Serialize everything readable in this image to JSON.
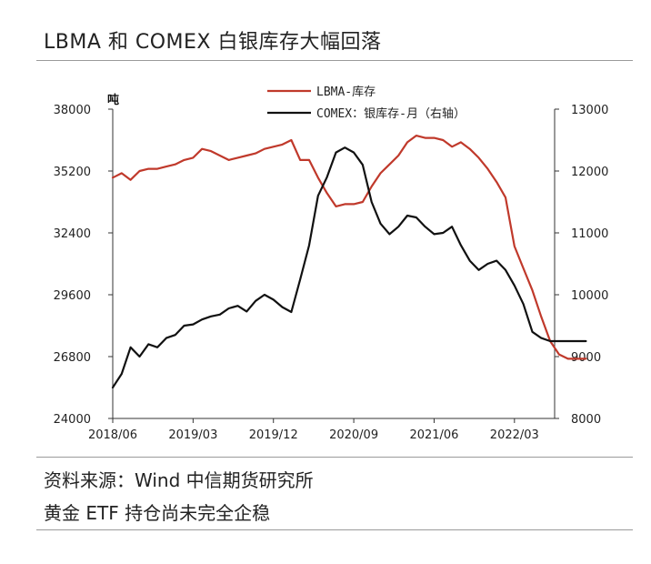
{
  "header": {
    "title": "LBMA 和 COMEX 白银库存大幅回落"
  },
  "footer": {
    "source": "资料来源：Wind 中信期货研究所",
    "note": "黄金 ETF 持仓尚未完全企稳"
  },
  "colors": {
    "lbma": "#c0392b",
    "comex": "#111111"
  },
  "chart_data": {
    "type": "line",
    "title": "",
    "left_unit_label": "吨",
    "x_ticks": [
      "2018/06",
      "2019/03",
      "2019/12",
      "2020/09",
      "2021/06",
      "2022/03"
    ],
    "y_left": {
      "lim": [
        24000,
        38000
      ],
      "ticks": [
        "24000",
        "26800",
        "29600",
        "32400",
        "35200",
        "38000"
      ]
    },
    "y_right": {
      "lim": [
        8000,
        13000
      ],
      "ticks": [
        "8000",
        "9000",
        "10000",
        "11000",
        "12000",
        "13000"
      ]
    },
    "legend_placement": "top-center",
    "series": [
      {
        "name": "LBMA-库存",
        "axis": "left",
        "x": [
          "2018/06",
          "2018/07",
          "2018/08",
          "2018/09",
          "2018/10",
          "2018/11",
          "2018/12",
          "2019/01",
          "2019/02",
          "2019/03",
          "2019/04",
          "2019/05",
          "2019/06",
          "2019/07",
          "2019/08",
          "2019/09",
          "2019/10",
          "2019/11",
          "2019/12",
          "2020/01",
          "2020/02",
          "2020/03",
          "2020/04",
          "2020/05",
          "2020/06",
          "2020/07",
          "2020/08",
          "2020/09",
          "2020/10",
          "2020/11",
          "2020/12",
          "2021/01",
          "2021/02",
          "2021/03",
          "2021/04",
          "2021/05",
          "2021/06",
          "2021/07",
          "2021/08",
          "2021/09",
          "2021/10",
          "2021/11",
          "2021/12",
          "2022/01",
          "2022/02",
          "2022/03",
          "2022/04",
          "2022/05",
          "2022/06",
          "2022/07",
          "2022/08",
          "2022/09",
          "2022/10",
          "2022/11"
        ],
        "values": [
          34900,
          35100,
          34800,
          35200,
          35300,
          35300,
          35400,
          35500,
          35700,
          35800,
          36200,
          36100,
          35900,
          35700,
          35800,
          35900,
          36000,
          36200,
          36300,
          36400,
          36600,
          35700,
          35700,
          34900,
          34200,
          33600,
          33700,
          33700,
          33800,
          34500,
          35100,
          35500,
          35900,
          36500,
          36800,
          36700,
          36700,
          36600,
          36300,
          36500,
          36200,
          35800,
          35300,
          34700,
          34000,
          31800,
          30800,
          29800,
          28600,
          27500,
          26900,
          26700,
          26700,
          26700
        ]
      },
      {
        "name": "COMEX：银库存-月（右轴）",
        "axis": "right",
        "x": [
          "2018/06",
          "2018/07",
          "2018/08",
          "2018/09",
          "2018/10",
          "2018/11",
          "2018/12",
          "2019/01",
          "2019/02",
          "2019/03",
          "2019/04",
          "2019/05",
          "2019/06",
          "2019/07",
          "2019/08",
          "2019/09",
          "2019/10",
          "2019/11",
          "2019/12",
          "2020/01",
          "2020/02",
          "2020/03",
          "2020/04",
          "2020/05",
          "2020/06",
          "2020/07",
          "2020/08",
          "2020/09",
          "2020/10",
          "2020/11",
          "2020/12",
          "2021/01",
          "2021/02",
          "2021/03",
          "2021/04",
          "2021/05",
          "2021/06",
          "2021/07",
          "2021/08",
          "2021/09",
          "2021/10",
          "2021/11",
          "2021/12",
          "2022/01",
          "2022/02",
          "2022/03",
          "2022/04",
          "2022/05",
          "2022/06",
          "2022/07",
          "2022/08",
          "2022/09",
          "2022/10",
          "2022/11"
        ],
        "values": [
          8500,
          8720,
          9150,
          9000,
          9200,
          9150,
          9300,
          9350,
          9500,
          9520,
          9600,
          9650,
          9680,
          9780,
          9820,
          9730,
          9900,
          10000,
          9920,
          9800,
          9720,
          10250,
          10800,
          11600,
          11900,
          12300,
          12380,
          12300,
          12100,
          11500,
          11150,
          10980,
          11100,
          11280,
          11250,
          11100,
          10980,
          11000,
          11100,
          10800,
          10550,
          10400,
          10500,
          10550,
          10400,
          10150,
          9850,
          9400,
          9300,
          9250,
          9250,
          9250,
          9250,
          9250
        ]
      }
    ]
  }
}
